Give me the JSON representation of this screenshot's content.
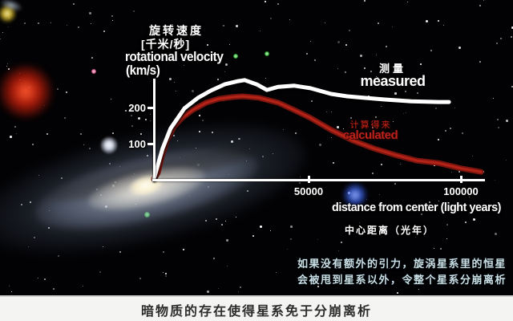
{
  "chart": {
    "title_zh": "旋转速度",
    "unit_zh": "[千米/秒]",
    "ylabel_en_line1": "rotational velocity",
    "ylabel_en_line2": "(km/s)",
    "xlabel_en": "distance from center (light years)",
    "xlabel_zh": "中心距离（光年）",
    "ytick_200": "200",
    "ytick_100": "100",
    "xtick_50000": "50000",
    "xtick_100000": "100000"
  },
  "legend": {
    "measured_zh": "测量",
    "measured_en": "measured",
    "calculated_zh": "计算得来",
    "calculated_en": "calculated"
  },
  "note": {
    "line1": "如果没有额外的引力，旋涡星系里的恒星",
    "line2": "会被甩到星系以外，令整个星系分崩离析"
  },
  "caption": "暗物质的存在使得星系免于分崩离析",
  "colors": {
    "measured": "#ffffff",
    "calculated_dark": "#7d150f",
    "calculated_bright": "#b32318",
    "label_red": "#c9251a",
    "note_cyan": "#c9dfe6"
  },
  "chart_data": {
    "type": "line",
    "title": "旋转速度 rotational velocity (km/s) vs distance from center (light years)",
    "xlabel": "distance from center (light years)",
    "ylabel": "rotational velocity (km/s)",
    "xlim": [
      0,
      107000
    ],
    "ylim": [
      0,
      290
    ],
    "x_ticks": [
      50000,
      100000
    ],
    "y_ticks": [
      100,
      200
    ],
    "grid": false,
    "legend_position": "inline-labels",
    "series": [
      {
        "name": "measured (测量)",
        "color": "#ffffff",
        "x": [
          0,
          2800,
          5400,
          9900,
          14300,
          18400,
          22900,
          27300,
          29400,
          33300,
          36600,
          40300,
          45500,
          50700,
          57400,
          62600,
          67800,
          74800,
          83400,
          92200,
          95600
        ],
        "y": [
          0,
          86,
          143,
          200,
          230,
          250,
          268,
          277,
          280,
          268,
          252,
          261,
          264,
          257,
          241,
          234,
          230,
          225,
          220,
          218,
          218
        ]
      },
      {
        "name": "calculated (计算得来)",
        "color": "#b32318",
        "x": [
          0,
          1300,
          2600,
          4200,
          6500,
          9100,
          12500,
          16900,
          21000,
          25500,
          28800,
          34000,
          40300,
          45500,
          50700,
          57400,
          64400,
          71400,
          78200,
          85200,
          92200,
          99500,
          106000
        ],
        "y": [
          0,
          18,
          64,
          109,
          148,
          173,
          195,
          216,
          227,
          232,
          234,
          230,
          216,
          195,
          173,
          139,
          109,
          86,
          68,
          52,
          45,
          30,
          20
        ]
      }
    ]
  }
}
